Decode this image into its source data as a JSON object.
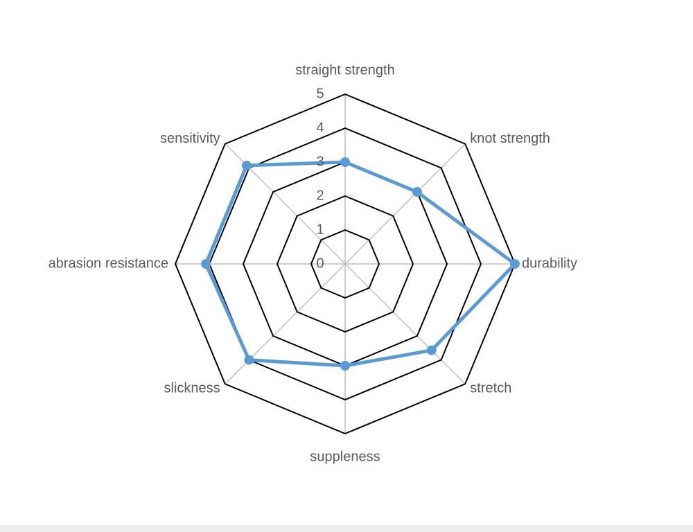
{
  "chart_data": {
    "type": "radar",
    "categories": [
      "straight strength",
      "knot strength",
      "durability",
      "stretch",
      "suppleness",
      "slickness",
      "abrasion resistance",
      "sensitivity"
    ],
    "values": [
      3,
      3,
      5,
      3.6,
      3,
      4,
      4.1,
      4.1
    ],
    "color": "#5b9bd5",
    "ylim": [
      0,
      5
    ],
    "yticks": [
      0,
      1,
      2,
      3,
      4,
      5
    ],
    "grid": true
  }
}
